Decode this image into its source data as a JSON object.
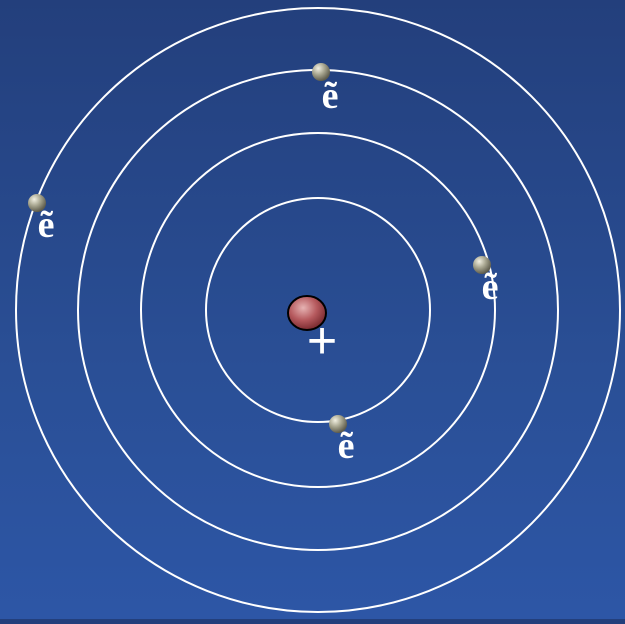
{
  "diagram": {
    "nucleus": {
      "charge_label": "+",
      "color": "#b65a5e"
    },
    "orbits": [
      {
        "name": "orbit-1"
      },
      {
        "name": "orbit-2"
      },
      {
        "name": "orbit-3"
      },
      {
        "name": "orbit-4"
      }
    ],
    "electrons": [
      {
        "label": "ẽ",
        "orbit": 2
      },
      {
        "label": "ẽ",
        "orbit": 3
      },
      {
        "label": "ẽ",
        "orbit": 1
      },
      {
        "label": "ẽ",
        "orbit": 0
      }
    ],
    "colors": {
      "orbit_stroke": "#ffffff",
      "electron_fill": "#8e8c78",
      "background_top": "#233f7c",
      "background_bottom": "#2d56a6"
    }
  }
}
